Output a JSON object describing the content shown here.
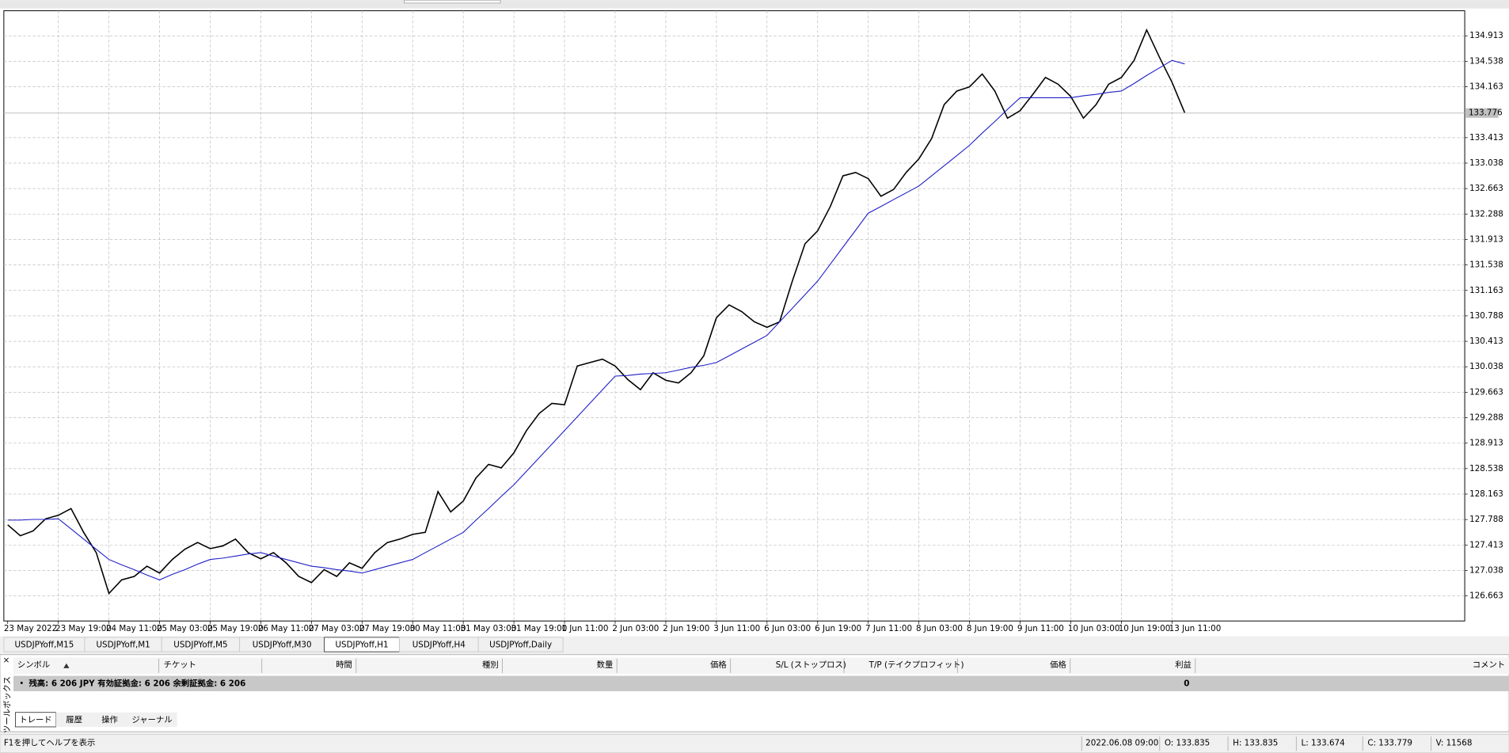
{
  "chart_data": {
    "type": "line",
    "categories": [
      "23 May 2022",
      null,
      null,
      null,
      "23 May 19:00",
      null,
      null,
      null,
      "24 May 11:00",
      null,
      null,
      null,
      "25 May 03:00",
      null,
      null,
      null,
      "25 May 19:00",
      null,
      null,
      null,
      "26 May 11:00",
      null,
      null,
      null,
      "27 May 03:00",
      null,
      null,
      null,
      "27 May 19:00",
      null,
      null,
      null,
      "30 May 11:00",
      null,
      null,
      null,
      "31 May 03:00",
      null,
      null,
      null,
      "31 May 19:00",
      null,
      null,
      null,
      "1 Jun 11:00",
      null,
      null,
      null,
      "2 Jun 03:00",
      null,
      null,
      null,
      "2 Jun 19:00",
      null,
      null,
      null,
      "3 Jun 11:00",
      null,
      null,
      null,
      "6 Jun 03:00",
      null,
      null,
      null,
      "6 Jun 19:00",
      null,
      null,
      null,
      "7 Jun 11:00",
      null,
      null,
      null,
      "8 Jun 03:00",
      null,
      null,
      null,
      "8 Jun 19:00",
      null,
      null,
      null,
      "9 Jun 11:00",
      null,
      null,
      null,
      "10 Jun 03:00",
      null,
      null,
      null,
      "10 Jun 19:00",
      null,
      null,
      null,
      "13 Jun 11:00",
      null
    ],
    "series": [
      {
        "color": "#000000",
        "values": [
          127.71,
          127.55,
          127.62,
          127.8,
          127.85,
          127.95,
          127.6,
          127.3,
          126.7,
          126.9,
          126.95,
          127.1,
          127.0,
          127.2,
          127.35,
          127.45,
          127.36,
          127.4,
          127.5,
          127.3,
          127.21,
          127.3,
          127.15,
          126.95,
          126.86,
          127.05,
          126.95,
          127.15,
          127.07,
          127.3,
          127.45,
          127.5,
          127.57,
          127.6,
          128.2,
          127.9,
          128.06,
          128.4,
          128.6,
          128.55,
          128.77,
          129.1,
          129.35,
          129.5,
          129.48,
          130.05,
          130.1,
          130.15,
          130.05,
          129.85,
          129.7,
          129.95,
          129.84,
          129.8,
          129.95,
          130.2,
          130.76,
          130.95,
          130.85,
          130.7,
          130.62,
          130.7,
          131.3,
          131.85,
          132.04,
          132.4,
          132.85,
          132.9,
          132.81,
          132.55,
          132.65,
          132.9,
          133.1,
          133.4,
          133.9,
          134.1,
          134.16,
          134.35,
          134.1,
          133.7,
          133.81,
          134.05,
          134.3,
          134.2,
          134.02,
          133.7,
          133.9,
          134.2,
          134.3,
          134.55,
          135.0,
          134.6,
          134.23,
          133.78
        ]
      },
      {
        "color": "#1f1fc8",
        "values": [
          127.78,
          127.78,
          127.79,
          127.79,
          127.8,
          127.65,
          127.5,
          127.35,
          127.2,
          127.12,
          127.05,
          126.97,
          126.9,
          126.98,
          127.05,
          127.13,
          127.2,
          127.22,
          127.25,
          127.28,
          127.3,
          127.25,
          127.2,
          127.15,
          127.1,
          127.08,
          127.05,
          127.03,
          127.0,
          127.05,
          127.1,
          127.15,
          127.2,
          127.3,
          127.4,
          127.5,
          127.6,
          127.78,
          127.95,
          128.13,
          128.3,
          128.5,
          128.7,
          128.9,
          129.1,
          129.3,
          129.5,
          129.7,
          129.9,
          129.91,
          129.93,
          129.94,
          129.95,
          129.99,
          130.03,
          130.06,
          130.1,
          130.2,
          130.3,
          130.4,
          130.5,
          130.7,
          130.9,
          131.1,
          131.3,
          131.55,
          131.8,
          132.05,
          132.3,
          132.4,
          132.5,
          132.6,
          132.7,
          132.85,
          133.0,
          133.15,
          133.3,
          133.48,
          133.65,
          133.83,
          134.0,
          134.0,
          134.0,
          134.0,
          134.0,
          134.03,
          134.05,
          134.08,
          134.1,
          134.21,
          134.33,
          134.44,
          134.55,
          134.5
        ]
      }
    ],
    "ylim": [
      126.294,
      135.282
    ],
    "yticks": [
      126.663,
      127.038,
      127.413,
      127.788,
      128.163,
      128.538,
      128.913,
      129.288,
      129.663,
      130.038,
      130.413,
      130.788,
      131.163,
      131.538,
      131.913,
      132.288,
      132.663,
      133.038,
      133.413,
      134.163,
      134.538,
      134.913
    ],
    "grid": true,
    "current_price": 133.776
  },
  "tabs": {
    "items": [
      "USDJPYoff,M15",
      "USDJPYoff,M1",
      "USDJPYoff,M5",
      "USDJPYoff,M30",
      "USDJPYoff,H1",
      "USDJPYoff,H4",
      "USDJPYoff,Daily"
    ],
    "active": 4
  },
  "terminal": {
    "side_title": "ツールボックス",
    "columns": [
      "シンボル",
      "チケット",
      "時間",
      "種別",
      "数量",
      "価格",
      "S/L (ストップロス)",
      "T/P (テイクプロフィット)",
      "価格",
      "利益",
      "コメント"
    ],
    "balance_row": {
      "text": "残高: 6 206 JPY  有効証拠金: 6 206  余剰証拠金: 6 206",
      "profit": "0"
    },
    "tabs": [
      "トレード",
      "履歴",
      "操作",
      "ジャーナル"
    ]
  },
  "status_bar": {
    "help": "F1を押してヘルプを表示",
    "time": "2022.06.08 09:00",
    "open": "O: 133.835",
    "high": "H: 133.835",
    "low": "L: 133.674",
    "close": "C: 133.779",
    "volume": "V: 11568"
  }
}
